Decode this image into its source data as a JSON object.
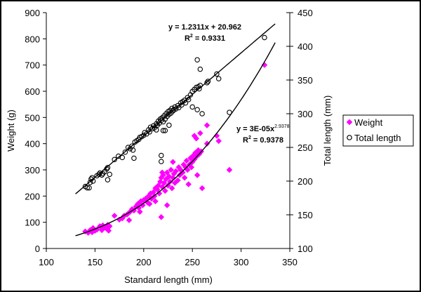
{
  "chart_data": {
    "type": "scatter",
    "xlabel": "Standard length (mm)",
    "ylabel": "Weight (g)",
    "y2label": "Total length (mm)",
    "xlim": [
      100,
      350
    ],
    "ylim": [
      0,
      900
    ],
    "y2lim": [
      100,
      450
    ],
    "xticks": [
      "100",
      "150",
      "200",
      "250",
      "300",
      "350"
    ],
    "yticks": [
      "0",
      "100",
      "200",
      "300",
      "400",
      "500",
      "600",
      "700",
      "800",
      "900"
    ],
    "y2ticks": [
      "100",
      "150",
      "200",
      "250",
      "300",
      "350",
      "400",
      "450"
    ],
    "grid": false,
    "legend_position": "right",
    "series": [
      {
        "name": "Weight",
        "axis": "left",
        "marker": "diamond",
        "color": "#FF00FF",
        "points": [
          [
            140,
            65
          ],
          [
            143,
            60
          ],
          [
            145,
            70
          ],
          [
            147,
            62
          ],
          [
            148,
            78
          ],
          [
            150,
            68
          ],
          [
            152,
            72
          ],
          [
            155,
            85
          ],
          [
            157,
            70
          ],
          [
            158,
            88
          ],
          [
            160,
            80
          ],
          [
            162,
            75
          ],
          [
            163,
            90
          ],
          [
            165,
            85
          ],
          [
            164,
            68
          ],
          [
            170,
            125
          ],
          [
            175,
            110
          ],
          [
            178,
            115
          ],
          [
            180,
            125
          ],
          [
            183,
            130
          ],
          [
            185,
            108
          ],
          [
            186,
            140
          ],
          [
            188,
            150
          ],
          [
            190,
            145
          ],
          [
            192,
            160
          ],
          [
            194,
            170
          ],
          [
            195,
            155
          ],
          [
            197,
            180
          ],
          [
            199,
            165
          ],
          [
            200,
            185
          ],
          [
            202,
            190
          ],
          [
            204,
            175
          ],
          [
            205,
            200
          ],
          [
            207,
            210
          ],
          [
            208,
            190
          ],
          [
            210,
            215
          ],
          [
            211,
            200
          ],
          [
            212,
            230
          ],
          [
            214,
            225
          ],
          [
            215,
            240
          ],
          [
            216,
            210
          ],
          [
            217,
            255
          ],
          [
            218,
            270
          ],
          [
            219,
            235
          ],
          [
            220,
            280
          ],
          [
            221,
            250
          ],
          [
            222,
            220
          ],
          [
            223,
            265
          ],
          [
            224,
            290
          ],
          [
            225,
            240
          ],
          [
            226,
            275
          ],
          [
            227,
            255
          ],
          [
            228,
            300
          ],
          [
            229,
            230
          ],
          [
            230,
            270
          ],
          [
            231,
            285
          ],
          [
            232,
            250
          ],
          [
            233,
            295
          ],
          [
            235,
            260
          ],
          [
            236,
            310
          ],
          [
            237,
            280
          ],
          [
            238,
            300
          ],
          [
            240,
            290
          ],
          [
            241,
            320
          ],
          [
            242,
            270
          ],
          [
            243,
            310
          ],
          [
            244,
            335
          ],
          [
            245,
            300
          ],
          [
            246,
            245
          ],
          [
            247,
            320
          ],
          [
            248,
            345
          ],
          [
            249,
            310
          ],
          [
            250,
            330
          ],
          [
            251,
            355
          ],
          [
            252,
            340
          ],
          [
            253,
            365
          ],
          [
            254,
            350
          ],
          [
            256,
            375
          ],
          [
            257,
            360
          ],
          [
            259,
            370
          ],
          [
            218,
            120
          ],
          [
            224,
            165
          ],
          [
            230,
            330
          ],
          [
            255,
            280
          ],
          [
            260,
            230
          ],
          [
            252,
            430
          ],
          [
            254,
            420
          ],
          [
            258,
            440
          ],
          [
            265,
            470
          ],
          [
            265,
            400
          ],
          [
            275,
            430
          ],
          [
            277,
            410
          ],
          [
            288,
            300
          ],
          [
            324,
            700
          ],
          [
            219,
            290
          ],
          [
            212,
            180
          ],
          [
            206,
            170
          ],
          [
            196,
            140
          ]
        ]
      },
      {
        "name": "Total length",
        "axis": "right",
        "marker": "circle",
        "color": "#000000",
        "points": [
          [
            140,
            192
          ],
          [
            142,
            190
          ],
          [
            144,
            190
          ],
          [
            145,
            198
          ],
          [
            146,
            203
          ],
          [
            147,
            205
          ],
          [
            148,
            200
          ],
          [
            152,
            208
          ],
          [
            154,
            210
          ],
          [
            155,
            212
          ],
          [
            157,
            209
          ],
          [
            158,
            211
          ],
          [
            160,
            214
          ],
          [
            162,
            218
          ],
          [
            163,
            220
          ],
          [
            163,
            202
          ],
          [
            165,
            210
          ],
          [
            170,
            232
          ],
          [
            174,
            237
          ],
          [
            178,
            235
          ],
          [
            181,
            243
          ],
          [
            184,
            250
          ],
          [
            186,
            248
          ],
          [
            188,
            252
          ],
          [
            189,
            246
          ],
          [
            190,
            234
          ],
          [
            191,
            258
          ],
          [
            193,
            260
          ],
          [
            195,
            262
          ],
          [
            196,
            265
          ],
          [
            198,
            266
          ],
          [
            200,
            268
          ],
          [
            201,
            272
          ],
          [
            203,
            270
          ],
          [
            205,
            276
          ],
          [
            206,
            273
          ],
          [
            207,
            280
          ],
          [
            209,
            278
          ],
          [
            210,
            282
          ],
          [
            211,
            279
          ],
          [
            213,
            285
          ],
          [
            214,
            283
          ],
          [
            215,
            289
          ],
          [
            216,
            286
          ],
          [
            217,
            292
          ],
          [
            218,
            290
          ],
          [
            219,
            294
          ],
          [
            220,
            288
          ],
          [
            221,
            297
          ],
          [
            222,
            292
          ],
          [
            223,
            300
          ],
          [
            224,
            296
          ],
          [
            225,
            303
          ],
          [
            226,
            299
          ],
          [
            227,
            305
          ],
          [
            228,
            301
          ],
          [
            229,
            308
          ],
          [
            230,
            304
          ],
          [
            231,
            306
          ],
          [
            232,
            310
          ],
          [
            233,
            307
          ],
          [
            235,
            312
          ],
          [
            236,
            309
          ],
          [
            238,
            316
          ],
          [
            239,
            313
          ],
          [
            240,
            318
          ],
          [
            242,
            320
          ],
          [
            243,
            316
          ],
          [
            245,
            324
          ],
          [
            246,
            321
          ],
          [
            248,
            328
          ],
          [
            250,
            333
          ],
          [
            252,
            336
          ],
          [
            254,
            339
          ],
          [
            256,
            340
          ],
          [
            257,
            337
          ],
          [
            258,
            342
          ],
          [
            265,
            346
          ],
          [
            266,
            348
          ],
          [
            255,
            380
          ],
          [
            258,
            366
          ],
          [
            250,
            310
          ],
          [
            255,
            306
          ],
          [
            260,
            300
          ],
          [
            288,
            302
          ],
          [
            324,
            413
          ],
          [
            275,
            359
          ],
          [
            277,
            352
          ],
          [
            220,
            275
          ],
          [
            222,
            275
          ],
          [
            218,
            238
          ],
          [
            218,
            229
          ],
          [
            213,
            276
          ],
          [
            226,
            283
          ]
        ]
      }
    ],
    "trendlines": [
      {
        "series": "Total length",
        "type": "linear",
        "slope": 1.2311,
        "intercept": 20.962,
        "x_range": [
          130,
          335
        ],
        "equation": "y = 1.2311x + 20.962",
        "r2_prefix": "R",
        "r2_sup": "2",
        "r2_value": " = 0.9331"
      },
      {
        "series": "Weight",
        "type": "power",
        "coef": 3e-05,
        "exponent": 2.9378,
        "x_range": [
          130,
          335
        ],
        "equation_base": "y = 3E-05x",
        "equation_sup": "2.9378",
        "r2_prefix": "R",
        "r2_sup": "2",
        "r2_value": " = 0.9378"
      }
    ]
  }
}
